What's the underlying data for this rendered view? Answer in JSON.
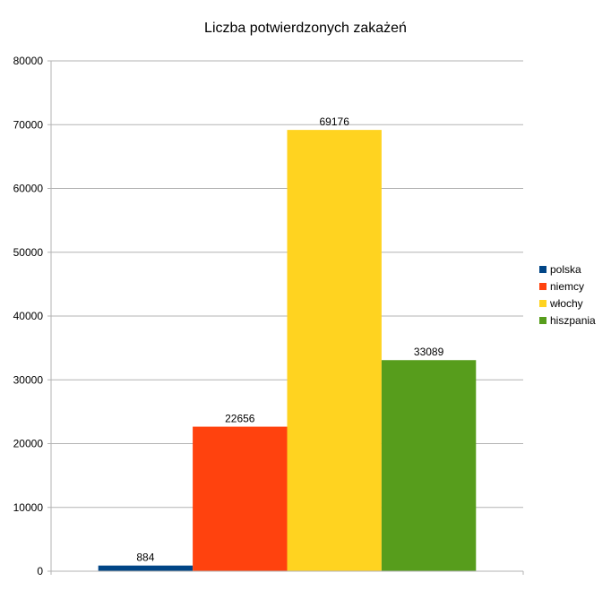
{
  "chart_data": {
    "type": "bar",
    "title": "Liczba potwierdzonych zakażeń",
    "xlabel": "",
    "ylabel": "",
    "ylim": [
      0,
      80000
    ],
    "ytick_step": 10000,
    "grid": true,
    "legend_position": "right",
    "series": [
      {
        "name": "polska",
        "value": 884,
        "color": "#004586"
      },
      {
        "name": "niemcy",
        "value": 22656,
        "color": "#ff420e"
      },
      {
        "name": "włochy",
        "value": 69176,
        "color": "#ffd320"
      },
      {
        "name": "hiszpania",
        "value": 33089,
        "color": "#579d1c"
      }
    ]
  }
}
